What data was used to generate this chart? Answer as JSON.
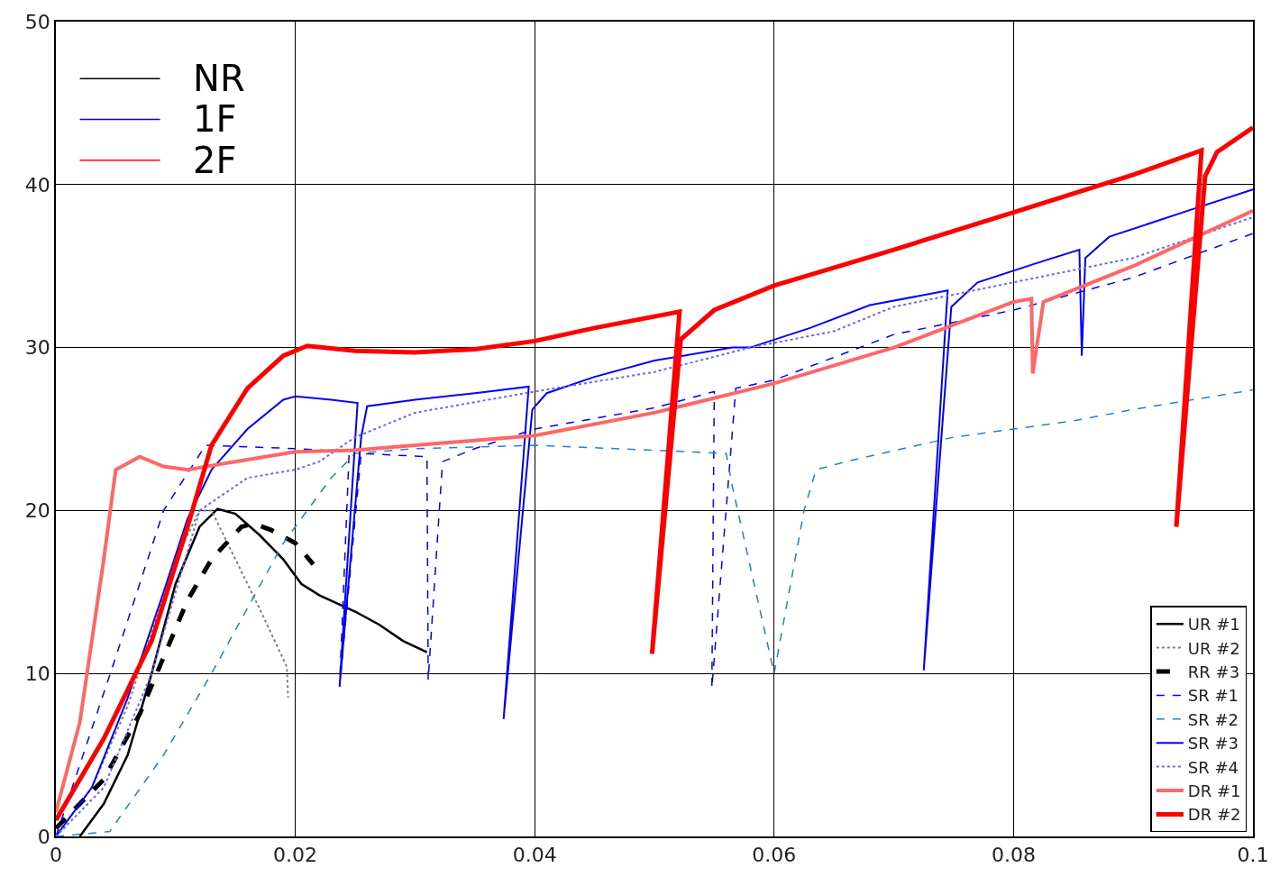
{
  "chart_data": {
    "type": "line",
    "xlim": [
      0,
      0.1
    ],
    "ylim": [
      0,
      50
    ],
    "xticks": [
      0,
      0.02,
      0.04,
      0.06,
      0.08,
      {
        "value": 0.1,
        "label": "0.1"
      }
    ],
    "yticks": [
      0,
      10,
      20,
      30,
      40,
      50
    ],
    "grid": true,
    "legend": "bottom right",
    "marker": "none",
    "annotations": [
      "NR",
      "1F",
      "2F"
    ],
    "series": [
      {
        "name": "UR #1",
        "color": "#000000",
        "line_style": "solid",
        "x": [
          0.002,
          0.004,
          0.006,
          0.008,
          0.01,
          0.012,
          0.0135,
          0.015,
          0.017,
          0.019,
          0.0205,
          0.022,
          0.025,
          0.027,
          0.029,
          0.031
        ],
        "values": [
          0,
          2,
          5,
          10,
          15.5,
          19,
          20.1,
          19.8,
          18.5,
          17,
          15.5,
          14.8,
          13.8,
          13,
          12,
          11.3
        ]
      },
      {
        "name": "UR #2",
        "color": "#808080",
        "line_style": "dotted",
        "x": [
          0,
          0.003,
          0.006,
          0.008,
          0.01,
          0.012,
          0.013,
          0.015,
          0.017,
          0.0193,
          0.0194
        ],
        "values": [
          0,
          3,
          8,
          12.5,
          17,
          20,
          20,
          17,
          14,
          10.4,
          8.5
        ]
      },
      {
        "name": "RR #3",
        "color": "#000000",
        "line_style": "dashed",
        "x": [
          0,
          0.004,
          0.007,
          0.009,
          0.011,
          0.013,
          0.0155,
          0.0165,
          0.018,
          0.02,
          0.0215
        ],
        "values": [
          0.5,
          3.5,
          7.5,
          11,
          14.5,
          17,
          19,
          19.2,
          18.8,
          18,
          16.7
        ]
      },
      {
        "name": "SR #1",
        "color": "#0000ff",
        "line_style": "dashed",
        "x": [
          0,
          0.005,
          0.009,
          0.0125,
          0.02,
          0.0245,
          0.0237,
          0.0255,
          0.031,
          0.0311,
          0.0323,
          0.035,
          0.04,
          0.05,
          0.055,
          0.0548,
          0.0568,
          0.06,
          0.07,
          0.08,
          0.09,
          0.1
        ],
        "values": [
          0,
          11,
          20,
          24,
          23.8,
          23.6,
          9.2,
          23.5,
          23.3,
          9.6,
          23,
          23.8,
          25,
          26.3,
          27.3,
          9.1,
          27.5,
          28,
          30.8,
          32.3,
          34.3,
          37
        ]
      },
      {
        "name": "SR #2",
        "color": "#1e80d8",
        "line_style": "dashed",
        "x": [
          0,
          0.0045,
          0.009,
          0.013,
          0.019,
          0.023,
          0.025,
          0.03,
          0.04,
          0.05,
          0.056,
          0.0565,
          0.06,
          0.0625,
          0.0635,
          0.066,
          0.072,
          0.075,
          0.08,
          0.085,
          0.09,
          0.1
        ],
        "values": [
          0,
          0.3,
          5,
          10,
          18,
          22,
          23.5,
          23.8,
          24,
          23.7,
          23.5,
          21.5,
          10,
          20,
          22.5,
          23,
          24,
          24.5,
          25,
          25.5,
          26.2,
          27.4
        ]
      },
      {
        "name": "SR #3",
        "color": "#0000ff",
        "line_style": "solid",
        "x": [
          0,
          0.003,
          0.006,
          0.009,
          0.011,
          0.013,
          0.016,
          0.019,
          0.02,
          0.023,
          0.0252,
          0.0237,
          0.0255,
          0.026,
          0.03,
          0.035,
          0.0395,
          0.0374,
          0.0398,
          0.041,
          0.045,
          0.05,
          0.0565,
          0.058,
          0.063,
          0.068,
          0.0745,
          0.0725,
          0.0748,
          0.077,
          0.082,
          0.0855,
          0.0857,
          0.086,
          0.088,
          0.095,
          0.1
        ],
        "values": [
          0,
          3,
          8.5,
          15,
          19.5,
          22.5,
          25,
          26.8,
          27,
          26.8,
          26.6,
          9.2,
          24.5,
          26.4,
          26.8,
          27.2,
          27.6,
          7.2,
          26.2,
          27.2,
          28.2,
          29.2,
          30,
          30,
          31.2,
          32.6,
          33.5,
          10.2,
          32.5,
          34,
          35.2,
          36,
          29.5,
          35.5,
          36.8,
          38.5,
          39.7
        ]
      },
      {
        "name": "SR #4",
        "color": "#6666ff",
        "line_style": "dotted",
        "x": [
          0,
          0.004,
          0.008,
          0.012,
          0.016,
          0.02,
          0.022,
          0.025,
          0.03,
          0.04,
          0.05,
          0.058,
          0.065,
          0.07,
          0.08,
          0.09,
          0.1
        ],
        "values": [
          0,
          3,
          10,
          20,
          22,
          22.5,
          23,
          24.5,
          26,
          27.3,
          28.5,
          30,
          31,
          32.5,
          34,
          35.5,
          38
        ]
      },
      {
        "name": "DR #1",
        "color": "#ff6666",
        "line_style": "solid",
        "x": [
          0,
          0.002,
          0.004,
          0.005,
          0.007,
          0.009,
          0.011,
          0.015,
          0.02,
          0.025,
          0.03,
          0.04,
          0.05,
          0.06,
          0.07,
          0.08,
          0.0815,
          0.0816,
          0.0825,
          0.09,
          0.1
        ],
        "values": [
          1.5,
          7,
          17,
          22.5,
          23.3,
          22.7,
          22.5,
          23,
          23.6,
          23.7,
          24,
          24.6,
          26,
          27.8,
          30,
          32.8,
          33,
          28.4,
          32.8,
          35,
          38.4
        ]
      },
      {
        "name": "DR #2",
        "color": "#ff0000",
        "line_style": "solid",
        "x": [
          0,
          0.004,
          0.008,
          0.011,
          0.013,
          0.016,
          0.019,
          0.021,
          0.025,
          0.03,
          0.035,
          0.04,
          0.045,
          0.0521,
          0.0498,
          0.0522,
          0.055,
          0.06,
          0.07,
          0.08,
          0.09,
          0.0957,
          0.0936,
          0.096,
          0.097,
          0.1
        ],
        "values": [
          1,
          6,
          12,
          19,
          24,
          27.5,
          29.5,
          30.1,
          29.8,
          29.7,
          29.9,
          30.4,
          31.2,
          32.2,
          11.2,
          30.5,
          32.3,
          33.8,
          36,
          38.3,
          40.6,
          42.1,
          19,
          40.5,
          42,
          43.5
        ]
      }
    ]
  }
}
